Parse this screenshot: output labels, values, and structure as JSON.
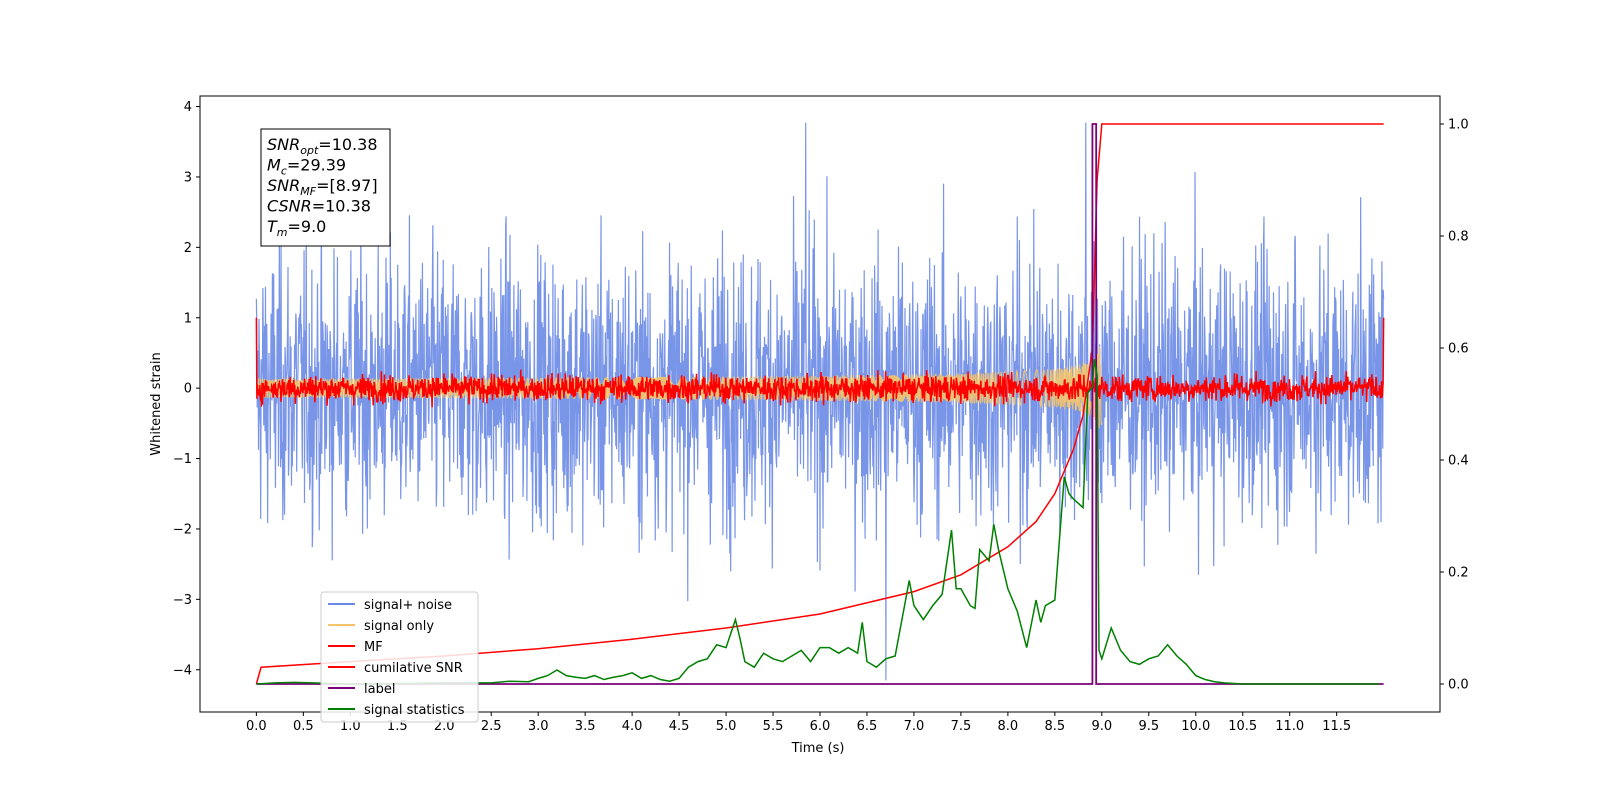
{
  "chart_data": {
    "type": "line",
    "xlabel": "Time (s)",
    "ylabel": "Whitened strain",
    "xlim": [
      -0.6,
      12.6
    ],
    "ylim": [
      -4.6,
      4.15
    ],
    "y2lim": [
      -0.05,
      1.05
    ],
    "x_ticks": [
      "0.0",
      "0.5",
      "1.0",
      "1.5",
      "2.0",
      "2.5",
      "3.0",
      "3.5",
      "4.0",
      "4.5",
      "5.0",
      "5.5",
      "6.0",
      "6.5",
      "7.0",
      "7.5",
      "8.0",
      "8.5",
      "9.0",
      "9.5",
      "10.0",
      "10.5",
      "11.0",
      "11.5"
    ],
    "y_ticks": [
      "−4",
      "−3",
      "−2",
      "−1",
      "0",
      "1",
      "2",
      "3",
      "4"
    ],
    "y2_ticks": [
      "0.0",
      "0.2",
      "0.4",
      "0.6",
      "0.8",
      "1.0"
    ],
    "legend_position": "lower-left",
    "annotation": {
      "lines": [
        {
          "base": "SNR",
          "sub": "opt",
          "value": "=10.38"
        },
        {
          "base": "M",
          "sub": "c",
          "value": "=29.39"
        },
        {
          "base": "SNR",
          "sub": "MF",
          "value": "=[8.97]"
        },
        {
          "base": "CSNR",
          "sub": "",
          "value": "=10.38"
        },
        {
          "base": "T",
          "sub": "m",
          "value": "=9.0"
        }
      ]
    },
    "series": [
      {
        "name": "signal+ noise",
        "color": "#6a8ae6",
        "axis": "left",
        "kind": "noise",
        "x_range": [
          0.0,
          12.0
        ],
        "amplitude": 1.0,
        "peak": 3.77,
        "trough": -4.15
      },
      {
        "name": "signal only",
        "color": "#f5c46a",
        "axis": "left",
        "kind": "chirp",
        "x_range": [
          0.0,
          9.0
        ],
        "peak_amplitude": 0.5,
        "merger_time": 9.0
      },
      {
        "name": "MF",
        "color": "#ff0000",
        "axis": "left",
        "kind": "noise",
        "x_range": [
          0.0,
          12.0
        ],
        "amplitude": 0.1,
        "edge_values": [
          1.0,
          -0.15,
          1.0
        ]
      },
      {
        "name": "cumilative SNR",
        "color": "#ff0000",
        "axis": "right",
        "x": [
          0.0,
          0.05,
          1.0,
          2.0,
          3.0,
          4.0,
          5.0,
          6.0,
          7.0,
          7.5,
          8.0,
          8.3,
          8.5,
          8.7,
          8.8,
          8.9,
          8.95,
          9.0,
          12.0
        ],
        "values": [
          0.0,
          0.03,
          0.04,
          0.05,
          0.063,
          0.08,
          0.1,
          0.125,
          0.165,
          0.195,
          0.245,
          0.29,
          0.34,
          0.42,
          0.48,
          0.6,
          0.9,
          1.0,
          1.0
        ]
      },
      {
        "name": "label",
        "color": "#7b007b",
        "axis": "right",
        "x": [
          0.0,
          8.9,
          8.9,
          8.94,
          8.94,
          12.0
        ],
        "values": [
          0.0,
          0.0,
          1.0,
          1.0,
          0.0,
          0.0
        ]
      },
      {
        "name": "signal statistics",
        "color": "#008000",
        "axis": "right",
        "x": [
          0.0,
          0.2,
          0.4,
          0.6,
          0.8,
          1.0,
          1.5,
          2.0,
          2.5,
          2.7,
          2.9,
          3.0,
          3.1,
          3.2,
          3.3,
          3.4,
          3.5,
          3.6,
          3.7,
          3.8,
          3.9,
          4.0,
          4.1,
          4.2,
          4.3,
          4.4,
          4.5,
          4.6,
          4.7,
          4.8,
          4.9,
          5.0,
          5.1,
          5.15,
          5.2,
          5.3,
          5.4,
          5.5,
          5.6,
          5.7,
          5.8,
          5.9,
          6.0,
          6.1,
          6.2,
          6.3,
          6.4,
          6.45,
          6.5,
          6.6,
          6.7,
          6.8,
          6.9,
          6.95,
          7.0,
          7.1,
          7.2,
          7.3,
          7.4,
          7.45,
          7.5,
          7.6,
          7.65,
          7.7,
          7.8,
          7.85,
          7.9,
          8.0,
          8.1,
          8.2,
          8.3,
          8.35,
          8.4,
          8.5,
          8.6,
          8.65,
          8.7,
          8.8,
          8.85,
          8.9,
          8.92,
          8.95,
          8.97,
          9.0,
          9.1,
          9.2,
          9.3,
          9.4,
          9.5,
          9.6,
          9.7,
          9.8,
          9.9,
          10.0,
          10.1,
          10.2,
          10.3,
          10.5,
          11.0,
          11.5,
          11.95
        ],
        "values": [
          0.0,
          0.002,
          0.003,
          0.002,
          0.001,
          0.0,
          0.001,
          0.002,
          0.002,
          0.005,
          0.004,
          0.01,
          0.015,
          0.025,
          0.015,
          0.012,
          0.01,
          0.015,
          0.008,
          0.012,
          0.015,
          0.02,
          0.01,
          0.015,
          0.008,
          0.005,
          0.01,
          0.03,
          0.04,
          0.045,
          0.07,
          0.065,
          0.115,
          0.08,
          0.04,
          0.03,
          0.055,
          0.045,
          0.04,
          0.05,
          0.06,
          0.04,
          0.065,
          0.065,
          0.055,
          0.065,
          0.055,
          0.11,
          0.04,
          0.03,
          0.045,
          0.05,
          0.14,
          0.185,
          0.14,
          0.115,
          0.14,
          0.16,
          0.275,
          0.17,
          0.17,
          0.14,
          0.135,
          0.24,
          0.22,
          0.285,
          0.24,
          0.17,
          0.13,
          0.065,
          0.15,
          0.11,
          0.14,
          0.15,
          0.37,
          0.34,
          0.33,
          0.315,
          0.52,
          0.53,
          0.58,
          0.55,
          0.06,
          0.045,
          0.1,
          0.06,
          0.04,
          0.035,
          0.045,
          0.05,
          0.07,
          0.05,
          0.035,
          0.015,
          0.008,
          0.004,
          0.002,
          0.0,
          0.0,
          0.0,
          0.0
        ]
      }
    ]
  }
}
